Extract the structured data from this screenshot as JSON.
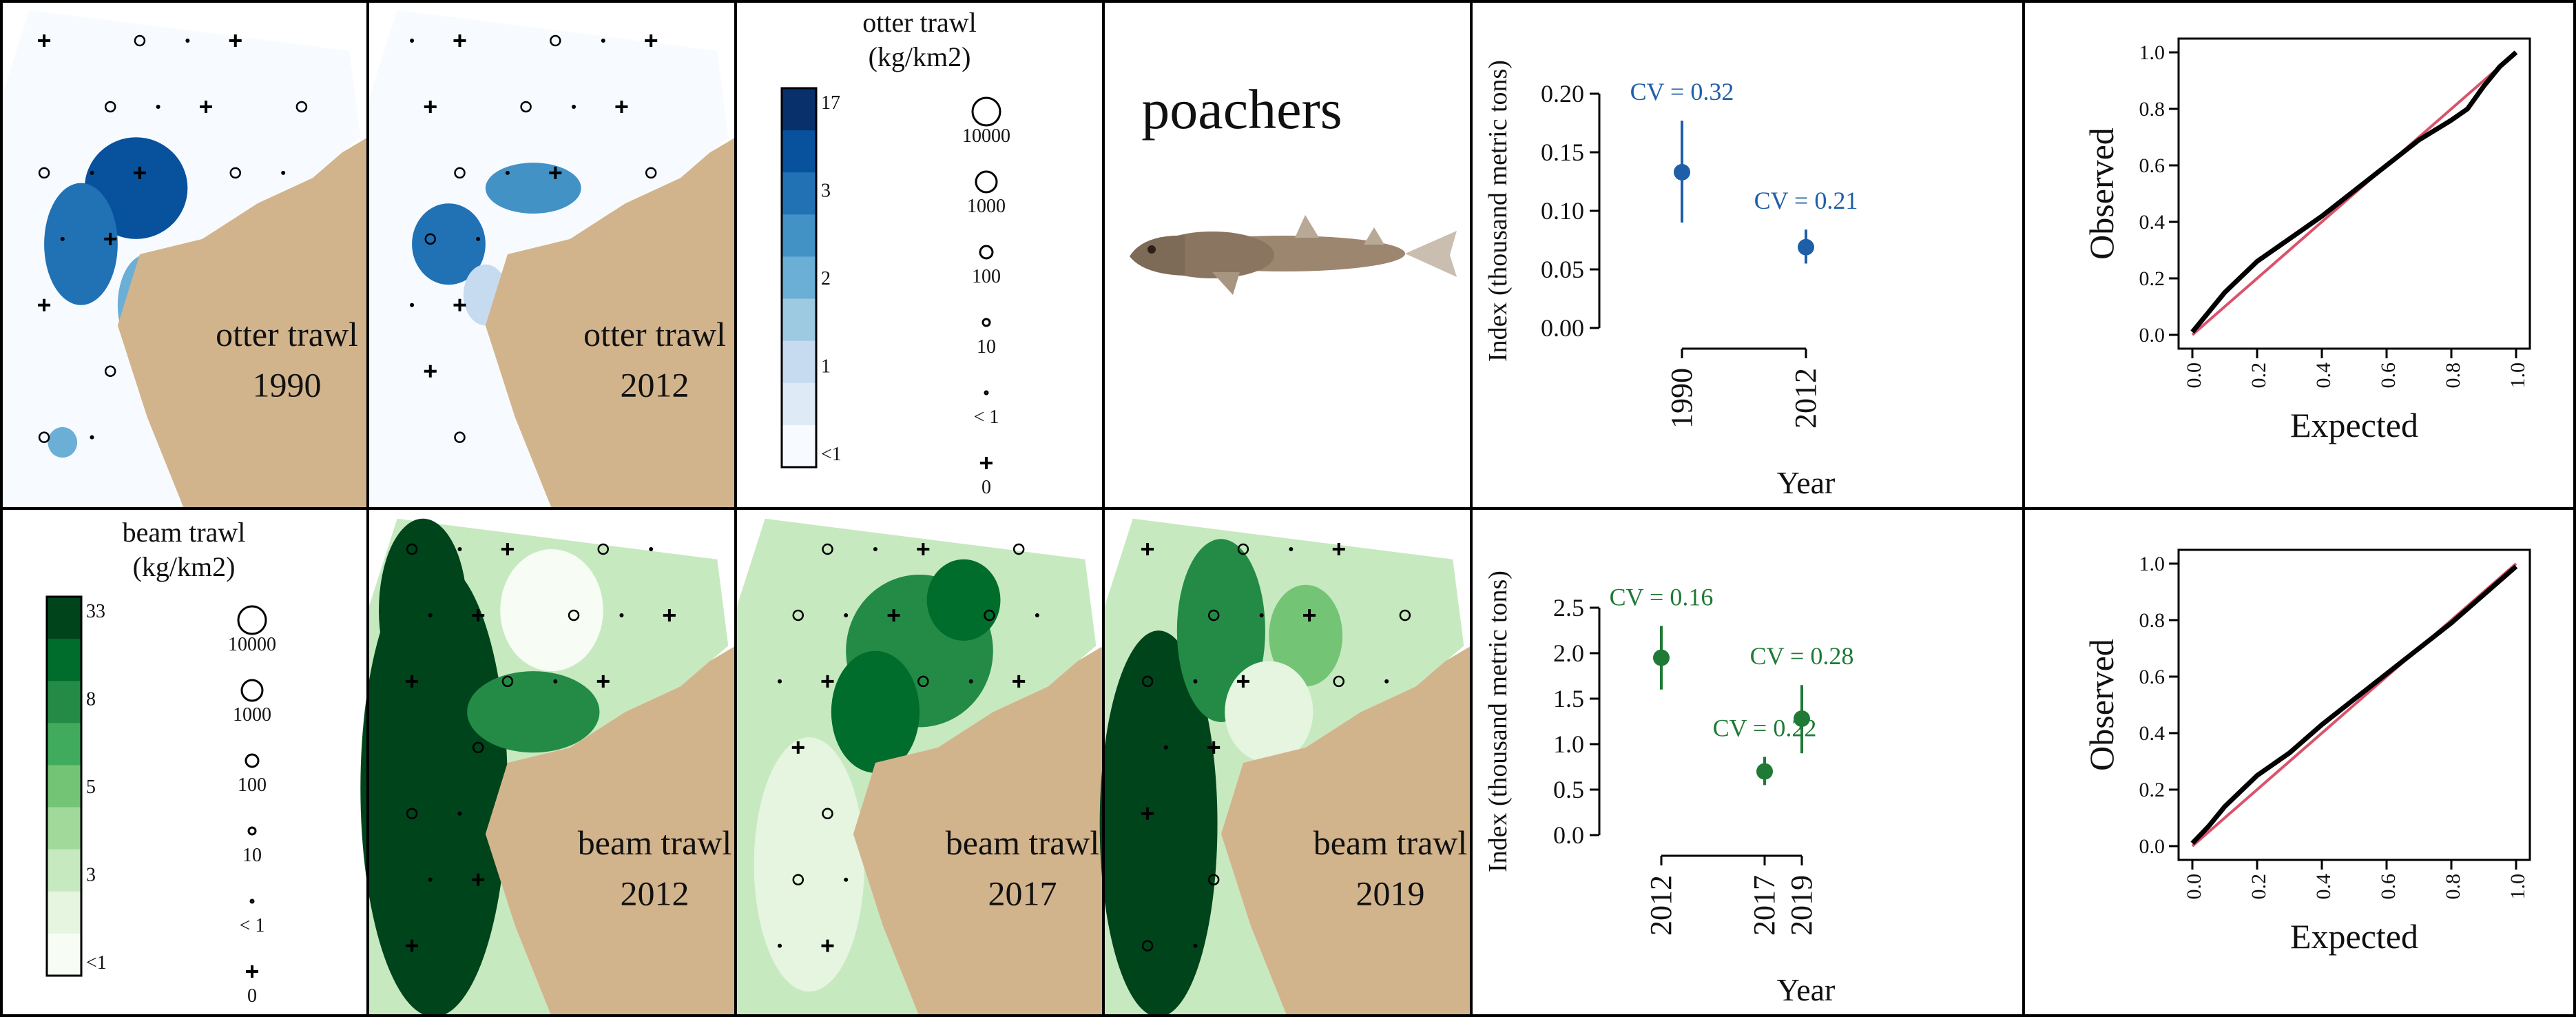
{
  "species": "poachers",
  "colors": {
    "land": "#d2b48c",
    "otter_blues": [
      "#f7fbff",
      "#deebf7",
      "#c6dbef",
      "#9ecae1",
      "#6baed6",
      "#4292c6",
      "#2171b5",
      "#08519c",
      "#08306b"
    ],
    "beam_greens": [
      "#f7fcf5",
      "#e5f5e0",
      "#c7e9c0",
      "#a1d99b",
      "#74c476",
      "#41ab5d",
      "#238b45",
      "#006d2c",
      "#00441b"
    ],
    "otter_series": "#1f5fa8",
    "beam_series": "#1f7a35",
    "ref_line": "#d9536a"
  },
  "maps": {
    "otter": [
      {
        "gear": "otter trawl",
        "year": "1990"
      },
      {
        "gear": "otter trawl",
        "year": "2012"
      }
    ],
    "beam": [
      {
        "gear": "beam trawl",
        "year": "2012"
      },
      {
        "gear": "beam trawl",
        "year": "2017"
      },
      {
        "gear": "beam trawl",
        "year": "2019"
      }
    ]
  },
  "legends": {
    "otter": {
      "title_line1": "otter trawl",
      "title_line2": "(kg/km2)",
      "color_ticks": [
        "17",
        "3",
        "2",
        "1",
        "<1"
      ],
      "circle_labels": [
        "10000",
        "1000",
        "100",
        "10",
        "< 1",
        "0"
      ]
    },
    "beam": {
      "title_line1": "beam trawl",
      "title_line2": "(kg/km2)",
      "color_ticks": [
        "33",
        "8",
        "5",
        "3",
        "<1"
      ],
      "circle_labels": [
        "10000",
        "1000",
        "100",
        "10",
        "< 1",
        "0"
      ]
    }
  },
  "chart_data": [
    {
      "type": "scatter",
      "ylabel": "Index (thousand metric tons)",
      "xlabel": "Year",
      "ylim": [
        0,
        0.2
      ],
      "yticks": [
        "0.00",
        "0.05",
        "0.10",
        "0.15",
        "0.20"
      ],
      "series": [
        {
          "x": [
            "1990",
            "2012"
          ],
          "values": [
            0.133,
            0.069
          ],
          "lower": [
            0.09,
            0.055
          ],
          "upper": [
            0.177,
            0.084
          ],
          "annotations": [
            "CV = 0.32",
            "CV = 0.21"
          ]
        }
      ]
    },
    {
      "type": "scatter",
      "ylabel": "Index (thousand metric tons)",
      "xlabel": "Year",
      "ylim": [
        0,
        2.5
      ],
      "yticks": [
        "0.0",
        "0.5",
        "1.0",
        "1.5",
        "2.0",
        "2.5"
      ],
      "series": [
        {
          "x": [
            "2012",
            "2017",
            "2019"
          ],
          "values": [
            1.95,
            0.7,
            1.28
          ],
          "lower": [
            1.6,
            0.55,
            0.9
          ],
          "upper": [
            2.3,
            0.86,
            1.65
          ],
          "annotations": [
            "CV = 0.16",
            "CV = 0.22",
            "CV = 0.28"
          ]
        }
      ]
    },
    {
      "type": "line",
      "xlabel": "Expected",
      "ylabel": "Observed",
      "xlim": [
        0,
        1
      ],
      "ylim": [
        0,
        1
      ],
      "ticks": [
        "0.0",
        "0.2",
        "0.4",
        "0.6",
        "0.8",
        "1.0"
      ],
      "series": [
        {
          "x": [
            0,
            0.05,
            0.1,
            0.2,
            0.3,
            0.4,
            0.5,
            0.6,
            0.7,
            0.8,
            0.85,
            0.9,
            0.95,
            1.0
          ],
          "values": [
            0.01,
            0.08,
            0.15,
            0.26,
            0.34,
            0.42,
            0.51,
            0.6,
            0.69,
            0.76,
            0.8,
            0.88,
            0.95,
            1.0
          ]
        }
      ]
    },
    {
      "type": "line",
      "xlabel": "Expected",
      "ylabel": "Observed",
      "xlim": [
        0,
        1
      ],
      "ylim": [
        0,
        1
      ],
      "ticks": [
        "0.0",
        "0.2",
        "0.4",
        "0.6",
        "0.8",
        "1.0"
      ],
      "series": [
        {
          "x": [
            0,
            0.05,
            0.1,
            0.2,
            0.3,
            0.4,
            0.5,
            0.6,
            0.7,
            0.8,
            0.85,
            0.9,
            0.95,
            1.0
          ],
          "values": [
            0.01,
            0.07,
            0.14,
            0.25,
            0.33,
            0.43,
            0.52,
            0.61,
            0.7,
            0.79,
            0.84,
            0.89,
            0.94,
            0.99
          ]
        }
      ]
    }
  ]
}
